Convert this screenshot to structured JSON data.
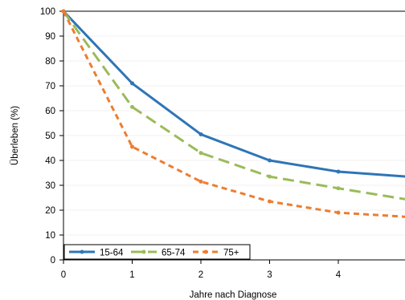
{
  "chart_data": {
    "type": "line",
    "xlabel": "Jahre nach Diagnose",
    "ylabel": "Überleben (%)",
    "xlim": [
      0,
      5
    ],
    "ylim": [
      0,
      100
    ],
    "x_ticks": [
      0,
      1,
      2,
      3,
      4
    ],
    "y_ticks": [
      0,
      10,
      20,
      30,
      40,
      50,
      60,
      70,
      80,
      90,
      100
    ],
    "grid": "horizontal",
    "legend_position": "bottom-left",
    "series": [
      {
        "name": "15-64",
        "color": "#2e75b6",
        "dash": "solid",
        "x": [
          0,
          1,
          2,
          3,
          4,
          5
        ],
        "values": [
          100,
          71,
          50.5,
          40,
          35.5,
          33.5
        ]
      },
      {
        "name": "65-74",
        "color": "#9bbb59",
        "dash": "long-dash",
        "x": [
          0,
          1,
          2,
          3,
          4,
          5
        ],
        "values": [
          100,
          61.5,
          43,
          33.5,
          28.8,
          24.3
        ]
      },
      {
        "name": "75+",
        "color": "#ed7d31",
        "dash": "short-dash",
        "x": [
          0,
          1,
          2,
          3,
          4,
          5
        ],
        "values": [
          100,
          45.5,
          31.5,
          23.5,
          19,
          17.3
        ]
      }
    ]
  }
}
